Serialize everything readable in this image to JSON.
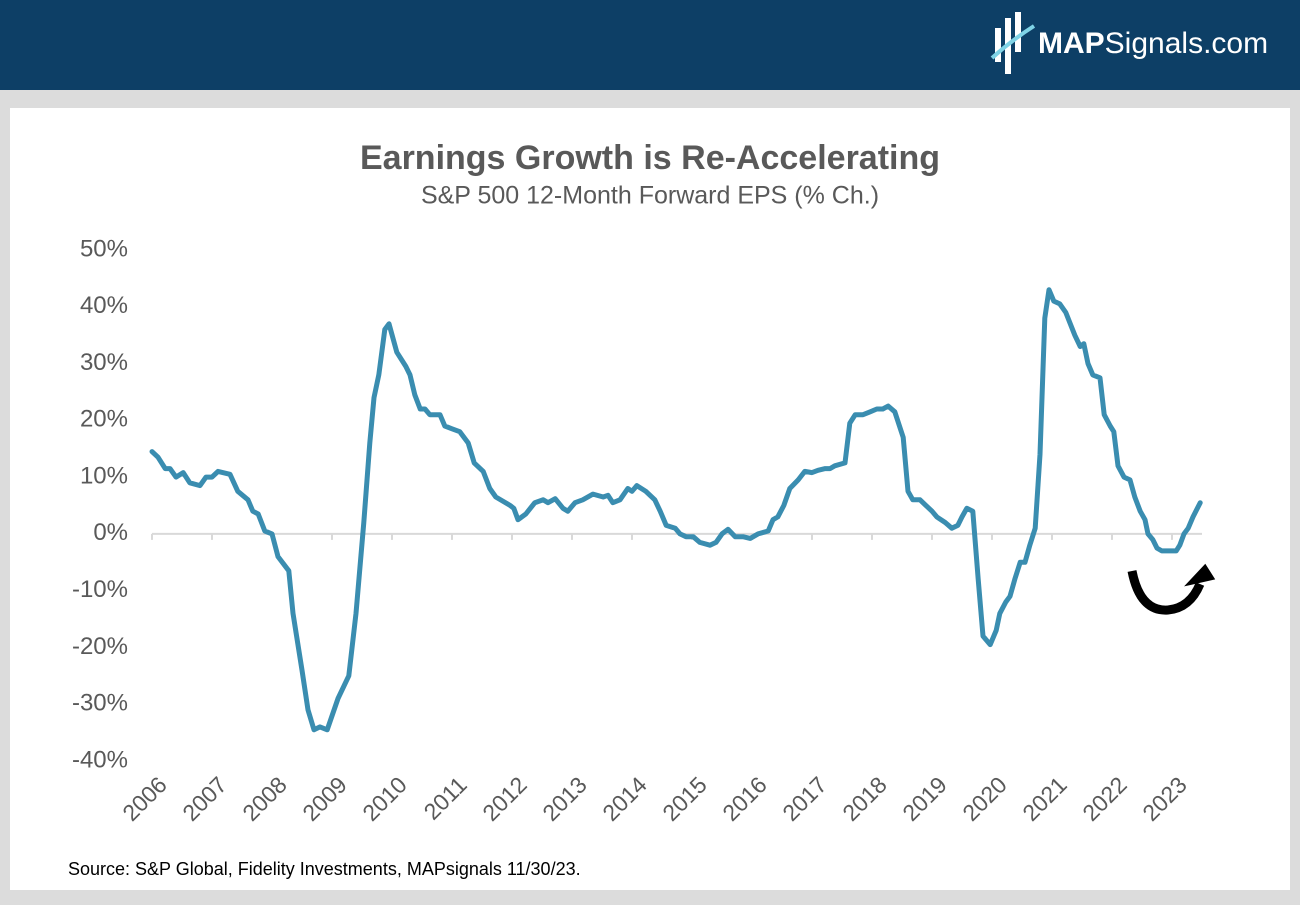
{
  "logo": {
    "bold": "MAP",
    "rest": "Signals.com"
  },
  "chart_data": {
    "type": "line",
    "title": "Earnings Growth is Re-Accelerating",
    "subtitle": "S&P 500 12-Month Forward EPS (% Ch.)",
    "source": "Source: S&P Global, Fidelity Investments, MAPsignals 11/30/23.",
    "xlim": [
      2006,
      2023.5
    ],
    "xticks": [
      2006,
      2007,
      2008,
      2009,
      2010,
      2011,
      2012,
      2013,
      2014,
      2015,
      2016,
      2017,
      2018,
      2019,
      2020,
      2021,
      2022,
      2023
    ],
    "ylim": [
      -40,
      50
    ],
    "yticks": [
      {
        "value": -40,
        "label": "-40%"
      },
      {
        "value": -30,
        "label": "-30%"
      },
      {
        "value": -20,
        "label": "-20%"
      },
      {
        "value": -10,
        "label": "-10%"
      },
      {
        "value": 0,
        "label": "0%"
      },
      {
        "value": 10,
        "label": "10%"
      },
      {
        "value": 20,
        "label": "20%"
      },
      {
        "value": 30,
        "label": "30%"
      },
      {
        "value": 40,
        "label": "40%"
      },
      {
        "value": 50,
        "label": "50%"
      }
    ],
    "grid": false,
    "x": [
      2006.0,
      2006.1,
      2006.22,
      2006.3,
      2006.4,
      2006.52,
      2006.63,
      2006.8,
      2006.9,
      2007.0,
      2007.1,
      2007.3,
      2007.43,
      2007.6,
      2007.68,
      2007.77,
      2007.88,
      2008.0,
      2008.1,
      2008.28,
      2008.35,
      2008.5,
      2008.6,
      2008.7,
      2008.8,
      2008.92,
      2009.1,
      2009.28,
      2009.4,
      2009.53,
      2009.63,
      2009.7,
      2009.78,
      2009.88,
      2009.95,
      2010.08,
      2010.23,
      2010.3,
      2010.38,
      2010.47,
      2010.55,
      2010.63,
      2010.8,
      2010.88,
      2011.0,
      2011.13,
      2011.27,
      2011.37,
      2011.52,
      2011.63,
      2011.73,
      2011.97,
      2012.03,
      2012.1,
      2012.23,
      2012.38,
      2012.52,
      2012.6,
      2012.72,
      2012.85,
      2012.93,
      2013.05,
      2013.18,
      2013.35,
      2013.52,
      2013.6,
      2013.68,
      2013.8,
      2013.93,
      2014.0,
      2014.08,
      2014.23,
      2014.38,
      2014.47,
      2014.57,
      2014.72,
      2014.8,
      2014.9,
      2015.02,
      2015.13,
      2015.3,
      2015.4,
      2015.5,
      2015.6,
      2015.72,
      2015.85,
      2015.97,
      2016.1,
      2016.27,
      2016.35,
      2016.43,
      2016.53,
      2016.63,
      2016.77,
      2016.88,
      2017.0,
      2017.1,
      2017.22,
      2017.3,
      2017.38,
      2017.55,
      2017.63,
      2017.72,
      2017.85,
      2017.97,
      2018.08,
      2018.18,
      2018.27,
      2018.38,
      2018.52,
      2018.6,
      2018.68,
      2018.8,
      2018.9,
      2019.0,
      2019.08,
      2019.22,
      2019.33,
      2019.43,
      2019.5,
      2019.58,
      2019.68,
      2019.77,
      2019.85,
      2019.97,
      2020.07,
      2020.13,
      2020.23,
      2020.3,
      2020.38,
      2020.47,
      2020.55,
      2020.63,
      2020.72,
      2020.8,
      2020.88,
      2020.95,
      2021.03,
      2021.13,
      2021.23,
      2021.38,
      2021.47,
      2021.53,
      2021.6,
      2021.68,
      2021.8,
      2021.87,
      2021.97,
      2022.03,
      2022.1,
      2022.2,
      2022.3,
      2022.38,
      2022.47,
      2022.55,
      2022.6,
      2022.68,
      2022.75,
      2022.83,
      2022.97,
      2023.07,
      2023.13,
      2023.2,
      2023.27,
      2023.35,
      2023.47
    ],
    "series": [
      {
        "name": "S&P 500 12-Month Forward EPS",
        "color": "#3a8db0",
        "values": [
          14.5,
          13.5,
          11.5,
          11.5,
          10,
          10.8,
          9,
          8.5,
          10,
          10,
          11,
          10.5,
          7.5,
          6,
          4,
          3.5,
          0.5,
          0,
          -4,
          -6.5,
          -14,
          -24,
          -31,
          -34.5,
          -34,
          -34.5,
          -29,
          -25,
          -14,
          2,
          16,
          24,
          28,
          36,
          37,
          32,
          29.5,
          28,
          24.5,
          22,
          22,
          21,
          21,
          19,
          18.5,
          18,
          16,
          12.5,
          11,
          8,
          6.5,
          5,
          4.5,
          2.5,
          3.5,
          5.5,
          6,
          5.5,
          6.2,
          4.5,
          4,
          5.5,
          6,
          7,
          6.5,
          6.8,
          5.5,
          6,
          8,
          7.5,
          8.5,
          7.5,
          6,
          4,
          1.5,
          1,
          0,
          -0.5,
          -0.5,
          -1.5,
          -2,
          -1.5,
          0,
          0.8,
          -0.5,
          -0.5,
          -0.8,
          0,
          0.5,
          2.5,
          3,
          5,
          8,
          9.5,
          11,
          10.8,
          11.2,
          11.5,
          11.5,
          12,
          12.5,
          19.5,
          21,
          21,
          21.5,
          22,
          22,
          22.5,
          21.5,
          17,
          7.5,
          6,
          6,
          5,
          4,
          3,
          2,
          1,
          1.5,
          3,
          4.5,
          4,
          -8,
          -18,
          -19.5,
          -17,
          -14,
          -12,
          -11,
          -8,
          -5,
          -5,
          -2,
          1,
          14,
          38,
          43,
          41,
          40.5,
          39,
          35,
          33,
          33.5,
          30,
          28,
          27.5,
          21,
          19,
          18,
          12,
          10,
          9.5,
          6.5,
          4,
          2.5,
          0,
          -1,
          -2.5,
          -3,
          -3,
          -3,
          -2,
          0,
          1,
          3,
          5.5
        ]
      }
    ]
  }
}
